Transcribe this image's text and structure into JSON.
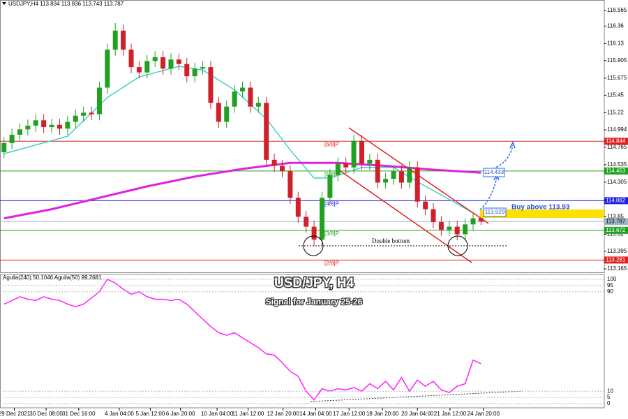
{
  "chart_data": {
    "type": "candlestick",
    "header": "USDJPY,H4  113.834 113.836 113.743 113.787",
    "title": "USD/JPY, H4",
    "subtitle": "Signal for January 25-26",
    "ylim": [
      113.119,
      116.657
    ],
    "xlim": [
      -0.5,
      75.5
    ],
    "yticks": [
      116.565,
      116.36,
      116.13,
      115.905,
      115.675,
      115.45,
      115.22,
      114.994,
      114.765,
      114.535,
      114.305,
      113.85,
      113.62,
      113.395,
      113.165
    ],
    "xticks": [
      {
        "value": 1.3,
        "label": "29 Dec 2021"
      },
      {
        "value": 5.3,
        "label": "30 Dec 08:00"
      },
      {
        "value": 9.4,
        "label": "31 Dec 16:00"
      },
      {
        "value": 14.5,
        "label": "4 Jan 04:00"
      },
      {
        "value": 18.4,
        "label": "5 Jan 12:00"
      },
      {
        "value": 22.2,
        "label": "6 Jan 20:00"
      },
      {
        "value": 26.8,
        "label": "10 Jan 04:00"
      },
      {
        "value": 30.7,
        "label": "11 Jan 12:00"
      },
      {
        "value": 35.1,
        "label": "12 Jan 20:00"
      },
      {
        "value": 39.2,
        "label": "14 Jan 04:00"
      },
      {
        "value": 43.4,
        "label": "17 Jan 12:00"
      },
      {
        "value": 47.6,
        "label": "18 Jan 20:00"
      },
      {
        "value": 52,
        "label": "20 Jan 04:00"
      },
      {
        "value": 56.1,
        "label": "21 Jan 12:00"
      },
      {
        "value": 60.3,
        "label": "24 Jan 20:00"
      }
    ],
    "bull_color": "#22a022",
    "bear_color": "#d0202a",
    "candles": {
      "open": [
        114.7,
        114.82,
        114.93,
        115.0,
        115.05,
        115.12,
        115.03,
        115.06,
        115.01,
        115.1,
        115.18,
        115.22,
        115.2,
        115.55,
        116.05,
        116.3,
        116.05,
        115.82,
        115.75,
        115.9,
        115.95,
        115.8,
        115.92,
        115.86,
        115.7,
        115.8,
        115.82,
        115.35,
        115.1,
        115.3,
        115.5,
        115.55,
        115.3,
        115.35,
        114.6,
        114.52,
        114.45,
        114.1,
        113.85,
        113.72,
        113.55,
        114.1,
        114.4,
        114.55,
        114.5,
        114.85,
        114.55,
        114.6,
        114.3,
        114.35,
        114.45,
        114.3,
        114.5,
        114.05,
        113.95,
        113.78,
        113.68,
        113.72,
        113.62,
        113.75,
        113.834
      ],
      "high": [
        114.9,
        115.01,
        115.08,
        115.13,
        115.2,
        115.2,
        115.14,
        115.14,
        115.18,
        115.26,
        115.3,
        115.3,
        115.63,
        116.13,
        116.4,
        116.38,
        116.13,
        115.9,
        115.98,
        116.03,
        116.03,
        116.0,
        116.0,
        115.94,
        115.88,
        115.9,
        115.9,
        115.43,
        115.38,
        115.58,
        115.63,
        115.63,
        115.43,
        115.43,
        114.68,
        114.6,
        114.53,
        114.18,
        113.93,
        113.8,
        114.18,
        114.48,
        114.63,
        114.63,
        114.93,
        114.93,
        114.68,
        114.68,
        114.43,
        114.53,
        114.53,
        114.58,
        114.58,
        114.13,
        114.03,
        113.86,
        113.8,
        113.8,
        113.83,
        113.91,
        113.836
      ],
      "low": [
        114.62,
        114.74,
        114.85,
        114.92,
        114.97,
        114.95,
        114.95,
        114.93,
        114.93,
        115.02,
        115.1,
        115.12,
        115.12,
        115.47,
        115.97,
        115.97,
        115.74,
        115.67,
        115.67,
        115.82,
        115.72,
        115.72,
        115.78,
        115.62,
        115.62,
        115.72,
        115.27,
        115.02,
        115.02,
        115.22,
        115.42,
        115.22,
        115.22,
        114.52,
        114.44,
        114.37,
        114.02,
        113.77,
        113.64,
        113.47,
        113.47,
        114.02,
        114.32,
        114.42,
        114.42,
        114.47,
        114.47,
        114.22,
        114.22,
        114.27,
        114.22,
        114.22,
        113.97,
        113.87,
        113.7,
        113.6,
        113.6,
        113.54,
        113.54,
        113.67,
        113.743
      ],
      "close": [
        114.82,
        114.93,
        115.0,
        115.05,
        115.12,
        115.03,
        115.06,
        115.01,
        115.1,
        115.18,
        115.22,
        115.2,
        115.55,
        116.05,
        116.3,
        116.05,
        115.82,
        115.75,
        115.9,
        115.95,
        115.8,
        115.92,
        115.86,
        115.7,
        115.8,
        115.82,
        115.35,
        115.1,
        115.3,
        115.5,
        115.55,
        115.3,
        115.35,
        114.6,
        114.52,
        114.45,
        114.1,
        113.85,
        113.72,
        113.55,
        114.1,
        114.4,
        114.55,
        114.5,
        114.85,
        114.55,
        114.6,
        114.3,
        114.35,
        114.45,
        114.3,
        114.5,
        114.05,
        113.95,
        113.78,
        113.68,
        113.72,
        113.62,
        113.75,
        113.83,
        113.787
      ]
    },
    "moving_averages": [
      {
        "color": "#40d0c8",
        "x": [
          0,
          8,
          13,
          17,
          22,
          25,
          29,
          33,
          36,
          39,
          41,
          45,
          49,
          52,
          56,
          59
        ],
        "values": [
          114.68,
          114.91,
          115.42,
          115.69,
          115.83,
          115.78,
          115.52,
          115.14,
          114.73,
          114.36,
          114.36,
          114.5,
          114.5,
          114.31,
          114.08,
          113.9
        ]
      },
      {
        "color": "#e020e0",
        "x": [
          0,
          6,
          12,
          18,
          24,
          30,
          36,
          42,
          48,
          54,
          60
        ],
        "values": [
          113.83,
          113.95,
          114.1,
          114.25,
          114.38,
          114.48,
          114.56,
          114.56,
          114.52,
          114.47,
          114.43
        ]
      }
    ],
    "levels": [
      {
        "value": 114.844,
        "tag": "[6/8]P",
        "color": "#e02020"
      },
      {
        "value": 114.453,
        "tag": "[5/8]P",
        "color": "#20a020"
      },
      {
        "value": 114.062,
        "tag": "[4/8]P",
        "color": "#2020e0"
      },
      {
        "value": 113.787,
        "color": "#a0b8c8"
      },
      {
        "value": 113.672,
        "tag": "[3/8]P",
        "color": "#20a020"
      },
      {
        "value": 113.281,
        "tag": "[2/8]P",
        "color": "#e02020"
      }
    ],
    "annotations": {
      "double_bottom": "Double bottom",
      "buy": "Buy above 113.93",
      "target": "114.433",
      "entry": "113.929"
    },
    "indicator": {
      "header": "Aguila(240) 50.1046 Aguila(50) 99.2681",
      "color": "#ff20ff",
      "ylim": [
        0,
        100
      ],
      "yticks": [
        100,
        95,
        90,
        10,
        5,
        0
      ],
      "values": [
        80,
        83,
        86,
        84,
        83,
        86,
        84,
        83,
        80,
        78,
        80,
        85,
        90,
        100,
        97,
        92,
        88,
        90,
        86,
        84,
        84,
        83,
        84,
        80,
        74,
        68,
        62,
        57,
        55,
        57,
        53,
        49,
        45,
        40,
        39,
        33,
        26,
        22,
        10,
        3,
        12,
        10,
        12,
        11,
        13,
        10,
        16,
        12,
        18,
        11,
        21,
        10,
        19,
        14,
        18,
        11,
        9,
        14,
        16,
        35,
        32
      ]
    }
  }
}
